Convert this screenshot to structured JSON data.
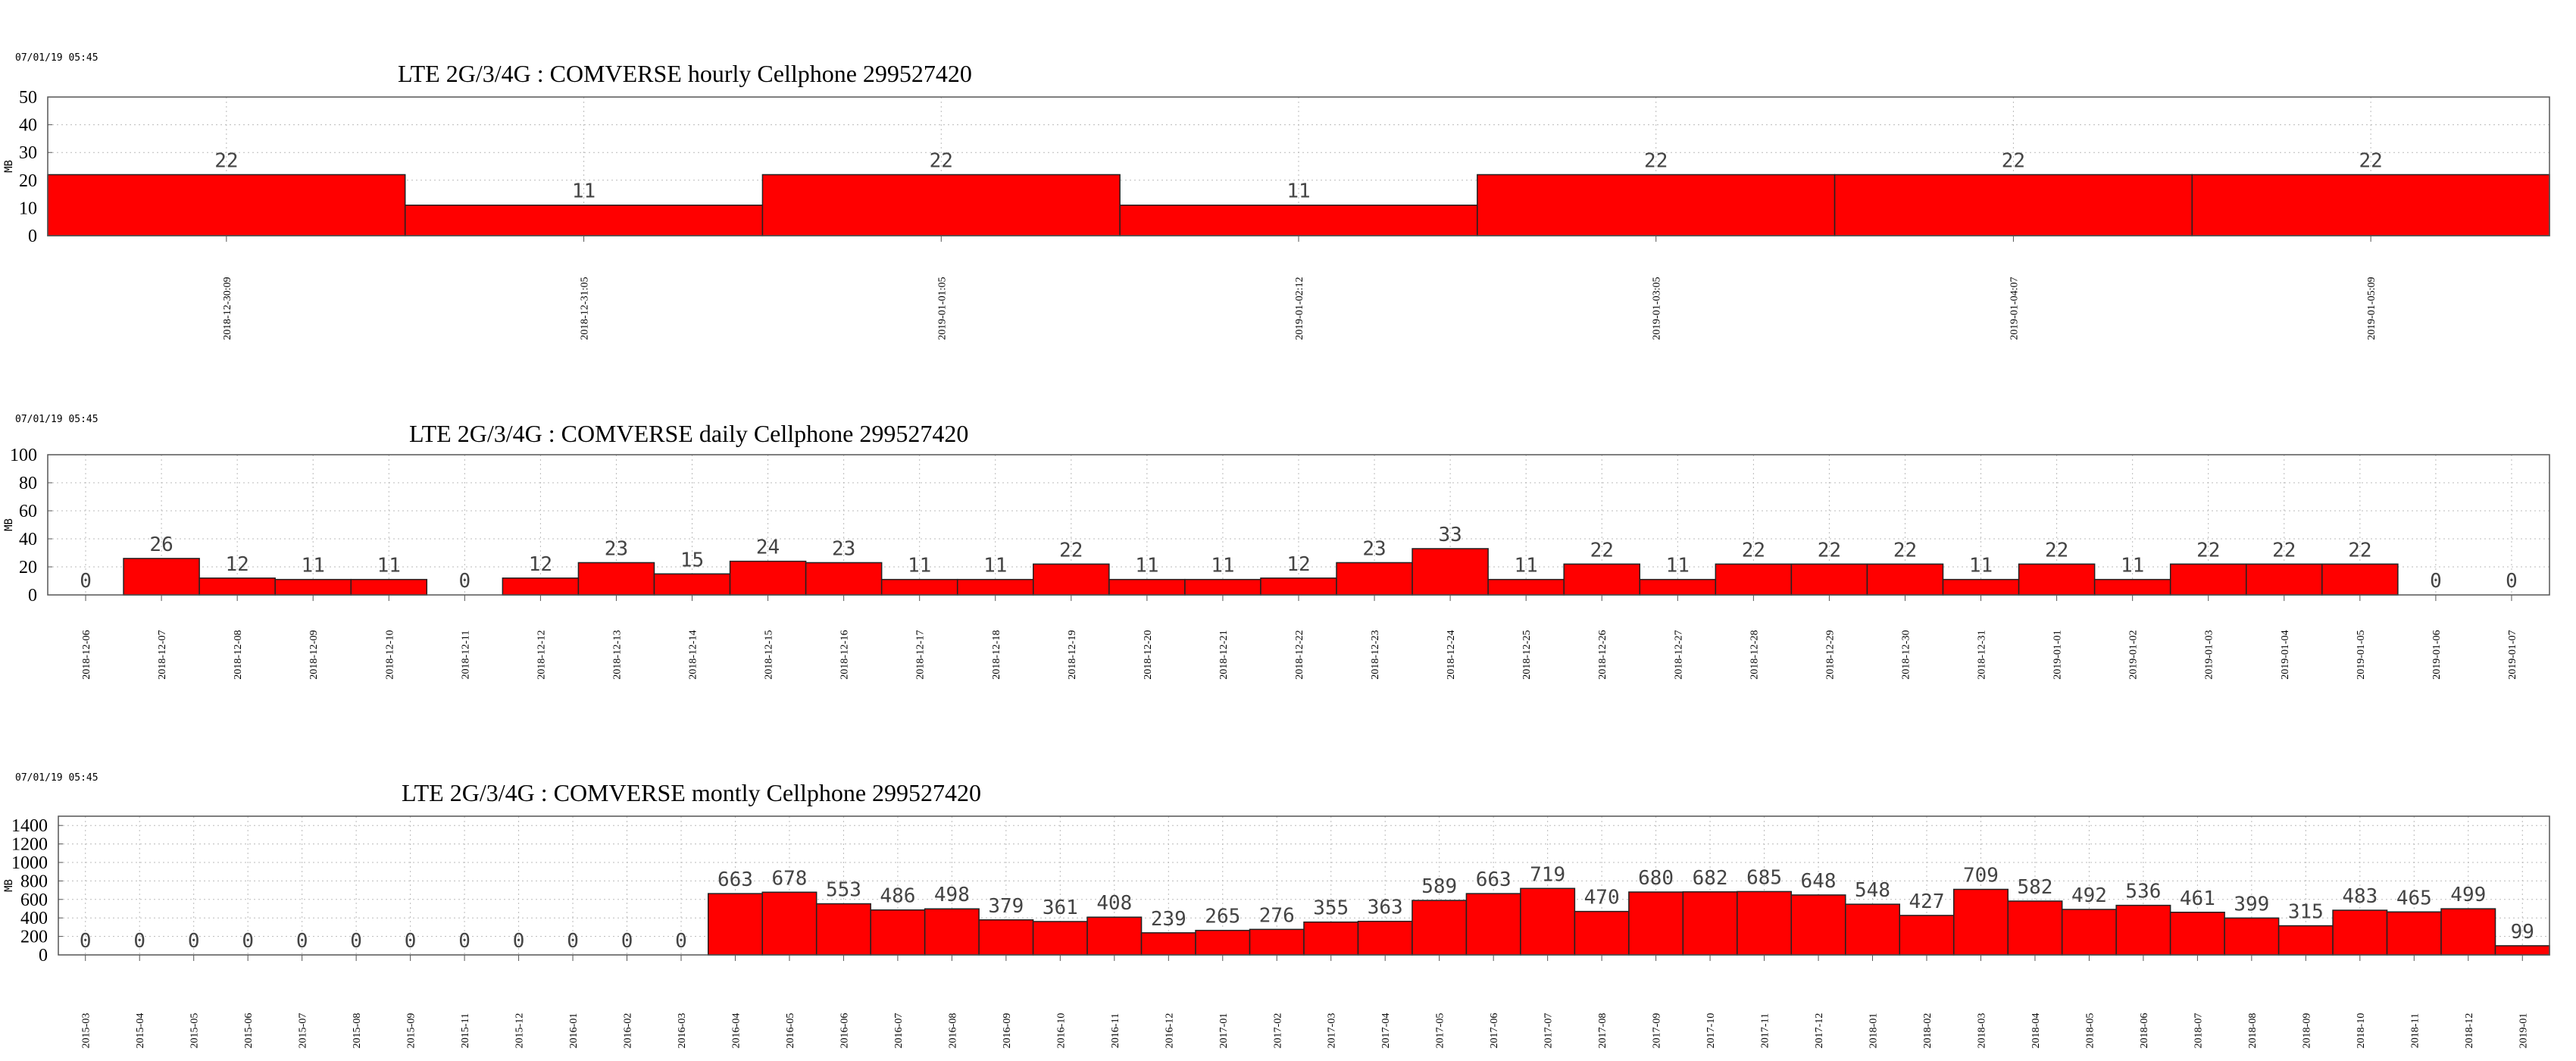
{
  "colors": {
    "bar": "#ff0000",
    "bar_outline": "#222222",
    "grid": "#bbbbbb"
  },
  "chart_data": [
    {
      "type": "bar",
      "timestamp": "07/01/19 05:45",
      "title": "LTE 2G/3/4G  :  COMVERSE hourly Cellphone  299527420",
      "ylabel": "MB",
      "ylim": [
        0,
        50
      ],
      "yticks": [
        0,
        10,
        20,
        30,
        40,
        50
      ],
      "grid": true,
      "categories": [
        "2018-12-30:09",
        "2018-12-31:05",
        "2019-01-01:05",
        "2019-01-02:12",
        "2019-01-03:05",
        "2019-01-04:07",
        "2019-01-05:09"
      ],
      "values": [
        22,
        11,
        22,
        11,
        22,
        22,
        22
      ],
      "data_labels": [
        "22",
        "11",
        "22",
        "11",
        "22",
        "22",
        "22"
      ]
    },
    {
      "type": "bar",
      "timestamp": "07/01/19 05:45",
      "title": "LTE 2G/3/4G  :  COMVERSE daily Cellphone  299527420",
      "ylabel": "MB",
      "ylim": [
        0,
        100
      ],
      "yticks": [
        0,
        20,
        40,
        60,
        80,
        100
      ],
      "grid": true,
      "categories": [
        "2018-12-06",
        "2018-12-07",
        "2018-12-08",
        "2018-12-09",
        "2018-12-10",
        "2018-12-11",
        "2018-12-12",
        "2018-12-13",
        "2018-12-14",
        "2018-12-15",
        "2018-12-16",
        "2018-12-17",
        "2018-12-18",
        "2018-12-19",
        "2018-12-20",
        "2018-12-21",
        "2018-12-22",
        "2018-12-23",
        "2018-12-24",
        "2018-12-25",
        "2018-12-26",
        "2018-12-27",
        "2018-12-28",
        "2018-12-29",
        "2018-12-30",
        "2018-12-31",
        "2019-01-01",
        "2019-01-02",
        "2019-01-03",
        "2019-01-04",
        "2019-01-05",
        "2019-01-06",
        "2019-01-07"
      ],
      "values": [
        0,
        26,
        12,
        11,
        11,
        0,
        12,
        23,
        15,
        24,
        23,
        11,
        11,
        22,
        11,
        11,
        12,
        23,
        33,
        11,
        22,
        11,
        22,
        22,
        22,
        11,
        22,
        11,
        22,
        22,
        22,
        0,
        0
      ],
      "data_labels": [
        "0",
        "26",
        "12",
        "11",
        "11",
        "0",
        "12",
        "23",
        "15",
        "24",
        "23",
        "11",
        "11",
        "22",
        "11",
        "11",
        "12",
        "23",
        "33",
        "11",
        "22",
        "11",
        "22",
        "22",
        "22",
        "11",
        "22",
        "11",
        "22",
        "22",
        "22",
        "0",
        "0"
      ]
    },
    {
      "type": "bar",
      "timestamp": "07/01/19 05:45",
      "title": "LTE 2G/3/4G  :  COMVERSE montly Cellphone  299527420",
      "ylabel": "MB",
      "ylim": [
        0,
        1500
      ],
      "yticks": [
        0,
        200,
        400,
        600,
        800,
        1000,
        1200,
        1400
      ],
      "grid": true,
      "categories": [
        "2015-03",
        "2015-04",
        "2015-05",
        "2015-06",
        "2015-07",
        "2015-08",
        "2015-09",
        "2015-11",
        "2015-12",
        "2016-01",
        "2016-02",
        "2016-03",
        "2016-04",
        "2016-05",
        "2016-06",
        "2016-07",
        "2016-08",
        "2016-09",
        "2016-10",
        "2016-11",
        "2016-12",
        "2017-01",
        "2017-02",
        "2017-03",
        "2017-04",
        "2017-05",
        "2017-06",
        "2017-07",
        "2017-08",
        "2017-09",
        "2017-10",
        "2017-11",
        "2017-12",
        "2018-01",
        "2018-02",
        "2018-03",
        "2018-04",
        "2018-05",
        "2018-06",
        "2018-07",
        "2018-08",
        "2018-09",
        "2018-10",
        "2018-11",
        "2018-12",
        "2019-01"
      ],
      "values": [
        0,
        0,
        0,
        0,
        0,
        0,
        0,
        0,
        0,
        0,
        0,
        0,
        663,
        678,
        553,
        486,
        498,
        379,
        361,
        408,
        239,
        265,
        276,
        355,
        363,
        589,
        663,
        719,
        470,
        680,
        682,
        685,
        648,
        548,
        427,
        709,
        582,
        492,
        536,
        461,
        399,
        315,
        483,
        465,
        499,
        99
      ],
      "data_labels": [
        "0",
        "0",
        "0",
        "0",
        "0",
        "0",
        "0",
        "0",
        "0",
        "0",
        "0",
        "0",
        "663",
        "678",
        "553",
        "486",
        "498",
        "379",
        "361",
        "408",
        "239",
        "265",
        "276",
        "355",
        "363",
        "589",
        "663",
        "719",
        "470",
        "680",
        "682",
        "685",
        "648",
        "548",
        "427",
        "709",
        "582",
        "492",
        "536",
        "461",
        "399",
        "315",
        "483",
        "465",
        "499",
        "99"
      ]
    }
  ]
}
